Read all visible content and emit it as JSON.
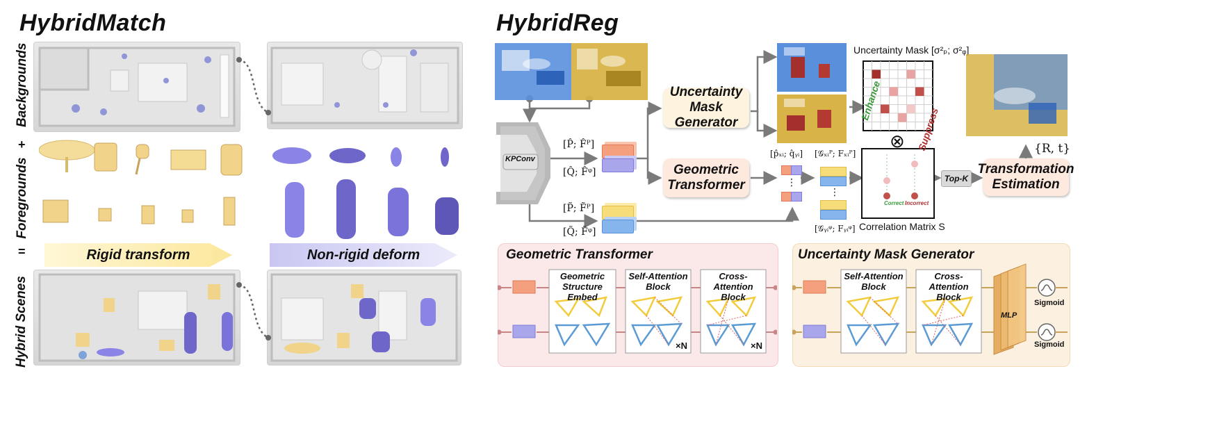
{
  "titles": {
    "left": "HybridMatch",
    "right": "HybridReg"
  },
  "row_labels": {
    "backgrounds": "Backgrounds",
    "foregrounds": "Foregrounds",
    "hybrid": "Hybrid Scenes"
  },
  "symbols": {
    "plus": "+",
    "equals": "="
  },
  "banners": {
    "rigid": "Rigid transform",
    "nonrigid": "Non-rigid deform"
  },
  "pipeline": {
    "kpconv": "KPConv",
    "p_hat": "[P̂; F̂ᴾ]",
    "q_hat": "[Q̂; F̂ᵠ]",
    "p_tilde": "[P̃; F̃ᴾ]",
    "q_tilde": "[Q̃; F̃ᵠ]",
    "umg_node": "Uncertainty Mask Generator",
    "gt_node": "Geometric Transformer",
    "pair_label": "[p̂ₓᵢ; q̂ᵧᵢ]",
    "gx_label": "[𝒢ₓᵢᴾ; Fₓᵢᴾ]",
    "gy_label": "[𝒢ᵧᵢᵠ; Fᵧᵢᵠ]",
    "dots": "⋮",
    "uncertainty_mask": "Uncertainty Mask [σ²ₚ; σ²ᵩ]",
    "otimes": "⊗",
    "enhance": "Enhance",
    "suppress": "Suppress",
    "correct": "Correct",
    "incorrect": "Incorrect",
    "correlation": "Correlation Matrix S",
    "topk": "Top-K",
    "te_node": "Transformation Estimation",
    "output": "{R, t}"
  },
  "gt_panel": {
    "title": "Geometric Transformer",
    "blocks": [
      "Geometric Structure Embed",
      "Self-Attention Block",
      "Cross-Attention Block"
    ],
    "xn": "×N"
  },
  "umg_panel": {
    "title": "Uncertainty Mask Generator",
    "blocks": [
      "Self-Attention Block",
      "Cross-Attention Block"
    ],
    "mlp": "MLP",
    "sigmoid": "Sigmoid"
  },
  "colors": {
    "orange": "#f4a07e",
    "purple": "#a9a6ec",
    "yellow": "#f7dc7a",
    "blue": "#86b4ec",
    "gt_bg": "#fbe9ea",
    "umg_bg": "#fcf1e0",
    "node_peach": "#fde9de",
    "node_cream": "#fdf3de",
    "tri_yellow": "#f2cc3d",
    "tri_blue": "#5b9bd5"
  }
}
